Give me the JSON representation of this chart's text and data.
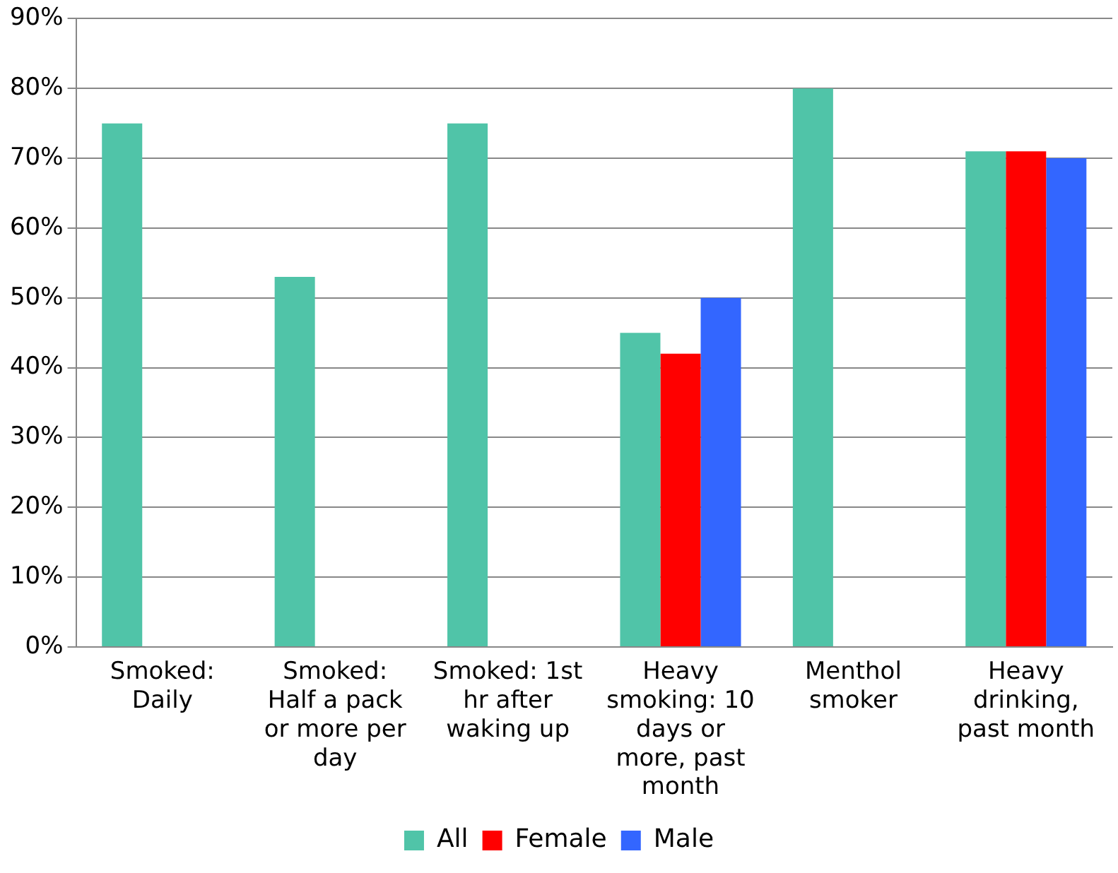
{
  "chart_data": {
    "type": "bar",
    "categories": [
      "Smoked: Daily",
      "Smoked: Half a pack or more per day",
      "Smoked: 1st hr after waking up",
      "Heavy smoking: 10 days or more, past month",
      "Menthol smoker",
      "Heavy drinking, past month"
    ],
    "series": [
      {
        "name": "All",
        "color": "#50c4a8",
        "values": [
          75,
          53,
          75,
          45,
          80,
          71
        ]
      },
      {
        "name": "Female",
        "color": "#ff0000",
        "values": [
          null,
          null,
          null,
          42,
          null,
          71
        ]
      },
      {
        "name": "Male",
        "color": "#3366ff",
        "values": [
          null,
          null,
          null,
          50,
          null,
          70
        ]
      }
    ],
    "ylim": [
      0,
      90
    ],
    "yticks": [
      {
        "value": 0,
        "label": "0%"
      },
      {
        "value": 10,
        "label": "10%"
      },
      {
        "value": 20,
        "label": "20%"
      },
      {
        "value": 30,
        "label": "30%"
      },
      {
        "value": 40,
        "label": "40%"
      },
      {
        "value": 50,
        "label": "50%"
      },
      {
        "value": 60,
        "label": "60%"
      },
      {
        "value": 70,
        "label": "70%"
      },
      {
        "value": 80,
        "label": "80%"
      },
      {
        "value": 90,
        "label": "90%"
      }
    ],
    "grid": "y",
    "legend": "bottom"
  }
}
